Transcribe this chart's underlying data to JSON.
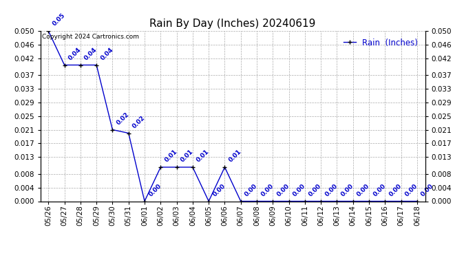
{
  "title": "Rain By Day (Inches) 20240619",
  "copyright_text": "Copyright 2024 Cartronics.com",
  "legend_label": "Rain  (Inches)",
  "x_labels": [
    "05/26",
    "05/27",
    "05/28",
    "05/29",
    "05/30",
    "05/31",
    "06/01",
    "06/02",
    "06/03",
    "06/04",
    "06/05",
    "06/06",
    "06/07",
    "06/08",
    "06/09",
    "06/10",
    "06/11",
    "06/12",
    "06/13",
    "06/14",
    "06/15",
    "06/16",
    "06/17",
    "06/18"
  ],
  "y_values": [
    0.05,
    0.04,
    0.04,
    0.04,
    0.021,
    0.02,
    0.0,
    0.01,
    0.01,
    0.01,
    0.0,
    0.01,
    0.0,
    0.0,
    0.0,
    0.0,
    0.0,
    0.0,
    0.0,
    0.0,
    0.0,
    0.0,
    0.0,
    0.0
  ],
  "line_color": "#0000cc",
  "marker_color": "#000000",
  "label_color": "#0000cc",
  "grid_color": "#aaaaaa",
  "background_color": "#ffffff",
  "ylim": [
    0.0,
    0.05
  ],
  "yticks": [
    0.0,
    0.004,
    0.008,
    0.013,
    0.017,
    0.021,
    0.025,
    0.029,
    0.033,
    0.037,
    0.042,
    0.046,
    0.05
  ],
  "title_fontsize": 11,
  "label_fontsize": 6.5,
  "tick_fontsize": 7.5,
  "copyright_fontsize": 6.5,
  "legend_fontsize": 8.5
}
